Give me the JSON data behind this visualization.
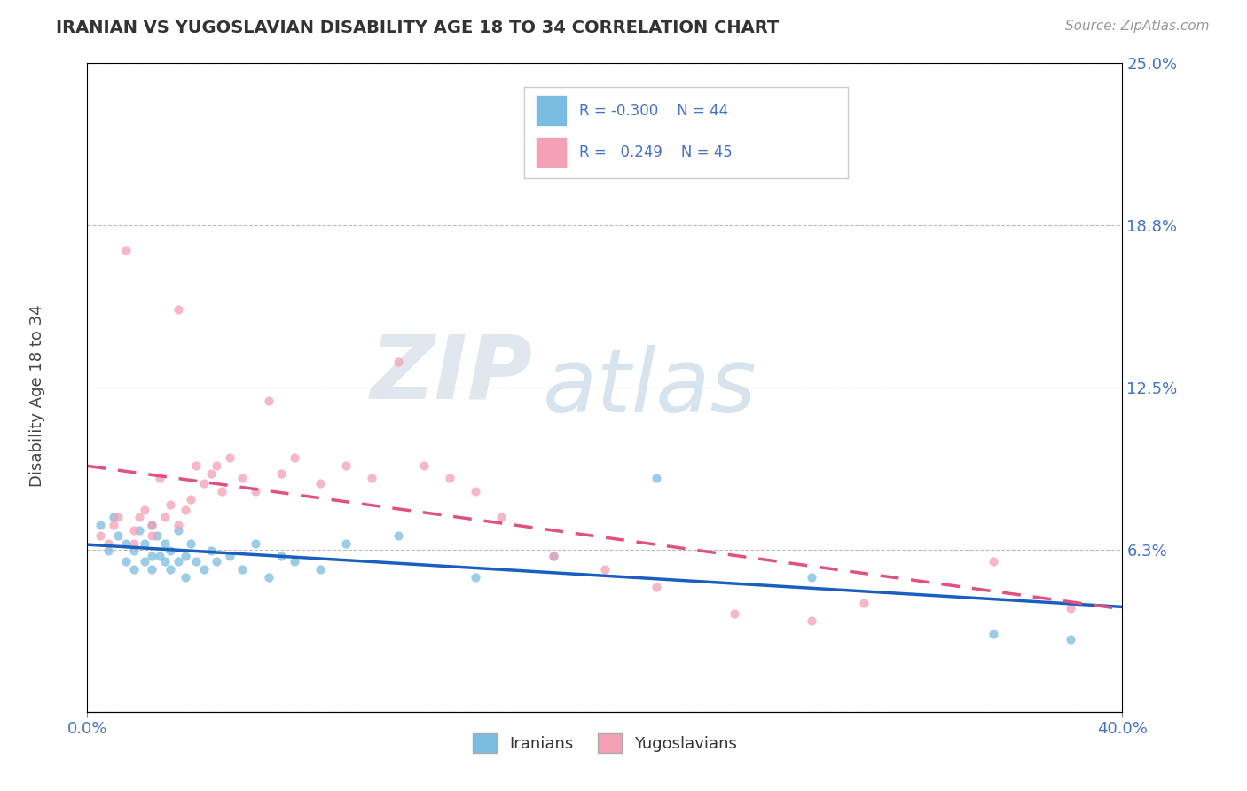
{
  "title": "IRANIAN VS YUGOSLAVIAN DISABILITY AGE 18 TO 34 CORRELATION CHART",
  "source_text": "Source: ZipAtlas.com",
  "ylabel": "Disability Age 18 to 34",
  "xmin": 0.0,
  "xmax": 0.4,
  "ymin": 0.0,
  "ymax": 0.25,
  "yticks": [
    0.0,
    0.0625,
    0.125,
    0.1875,
    0.25
  ],
  "ytick_labels": [
    "",
    "6.3%",
    "12.5%",
    "18.8%",
    "25.0%"
  ],
  "xtick_labels": [
    "0.0%",
    "40.0%"
  ],
  "color_iranian": "#7bbde0",
  "color_yugoslavian": "#f4a0b5",
  "trend_iranian_color": "#1a5fbf",
  "trend_yugoslav_color": "#e05080",
  "background_color": "#ffffff",
  "grid_color": "#bbbbbb",
  "iranians_x": [
    0.005,
    0.008,
    0.01,
    0.012,
    0.015,
    0.015,
    0.018,
    0.018,
    0.02,
    0.022,
    0.022,
    0.025,
    0.025,
    0.025,
    0.027,
    0.028,
    0.03,
    0.03,
    0.032,
    0.032,
    0.035,
    0.035,
    0.038,
    0.038,
    0.04,
    0.042,
    0.045,
    0.048,
    0.05,
    0.055,
    0.06,
    0.065,
    0.07,
    0.075,
    0.08,
    0.09,
    0.1,
    0.12,
    0.15,
    0.18,
    0.22,
    0.28,
    0.35,
    0.38
  ],
  "iranians_y": [
    0.072,
    0.062,
    0.075,
    0.068,
    0.058,
    0.065,
    0.055,
    0.062,
    0.07,
    0.065,
    0.058,
    0.072,
    0.06,
    0.055,
    0.068,
    0.06,
    0.065,
    0.058,
    0.062,
    0.055,
    0.07,
    0.058,
    0.06,
    0.052,
    0.065,
    0.058,
    0.055,
    0.062,
    0.058,
    0.06,
    0.055,
    0.065,
    0.052,
    0.06,
    0.058,
    0.055,
    0.065,
    0.068,
    0.052,
    0.06,
    0.09,
    0.052,
    0.03,
    0.028
  ],
  "yugoslavians_x": [
    0.005,
    0.008,
    0.01,
    0.012,
    0.015,
    0.018,
    0.018,
    0.02,
    0.022,
    0.025,
    0.025,
    0.028,
    0.03,
    0.032,
    0.035,
    0.035,
    0.038,
    0.04,
    0.042,
    0.045,
    0.048,
    0.05,
    0.052,
    0.055,
    0.06,
    0.065,
    0.07,
    0.075,
    0.08,
    0.09,
    0.1,
    0.11,
    0.12,
    0.13,
    0.14,
    0.15,
    0.16,
    0.18,
    0.2,
    0.22,
    0.25,
    0.28,
    0.3,
    0.35,
    0.38
  ],
  "yugoslavians_y": [
    0.068,
    0.065,
    0.072,
    0.075,
    0.178,
    0.065,
    0.07,
    0.075,
    0.078,
    0.072,
    0.068,
    0.09,
    0.075,
    0.08,
    0.072,
    0.155,
    0.078,
    0.082,
    0.095,
    0.088,
    0.092,
    0.095,
    0.085,
    0.098,
    0.09,
    0.085,
    0.12,
    0.092,
    0.098,
    0.088,
    0.095,
    0.09,
    0.135,
    0.095,
    0.09,
    0.085,
    0.075,
    0.06,
    0.055,
    0.048,
    0.038,
    0.035,
    0.042,
    0.058,
    0.04
  ]
}
